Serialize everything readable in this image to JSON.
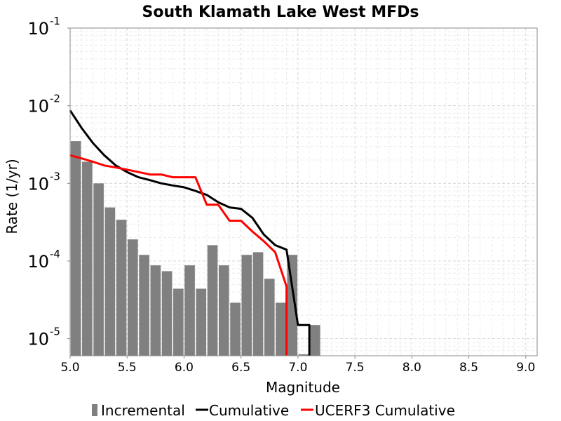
{
  "chart_data": {
    "type": "bar+line",
    "title": "South Klamath Lake West MFDs",
    "xlabel": "Magnitude",
    "ylabel": "Rate (1/yr)",
    "xlim": [
      5.0,
      9.1
    ],
    "ylim_log10": [
      -5.22,
      -1
    ],
    "yscale": "log",
    "grid": true,
    "legend_position": "bottom",
    "x_ticks": [
      "5.0",
      "5.5",
      "6.0",
      "6.5",
      "7.0",
      "7.5",
      "8.0",
      "8.5",
      "9.0"
    ],
    "y_ticks": [
      {
        "base": "10",
        "exp": "-5",
        "value": 1e-05
      },
      {
        "base": "10",
        "exp": "-4",
        "value": 0.0001
      },
      {
        "base": "10",
        "exp": "-3",
        "value": 0.001
      },
      {
        "base": "10",
        "exp": "-2",
        "value": 0.01
      },
      {
        "base": "10",
        "exp": "-1",
        "value": 0.1
      }
    ],
    "incremental": {
      "name": "Incremental",
      "color": "#808080",
      "x": [
        5.05,
        5.15,
        5.25,
        5.35,
        5.45,
        5.55,
        5.65,
        5.75,
        5.85,
        5.95,
        6.05,
        6.15,
        6.25,
        6.35,
        6.45,
        6.55,
        6.65,
        6.75,
        6.85,
        6.95,
        7.05,
        7.15
      ],
      "values": [
        0.0035,
        0.0019,
        0.001,
        0.00049,
        0.00034,
        0.00019,
        0.00012,
        8.8e-05,
        7.4e-05,
        4.4e-05,
        8.8e-05,
        4.4e-05,
        0.00016,
        8.8e-05,
        2.9e-05,
        0.00012,
        0.00013,
        5.9e-05,
        2.9e-05,
        0.00012,
        6.3e-06,
        1.5e-05
      ]
    },
    "cumulative": {
      "name": "Cumulative",
      "color": "#000000",
      "x": [
        5.0,
        5.1,
        5.2,
        5.3,
        5.4,
        5.5,
        5.6,
        5.7,
        5.8,
        5.9,
        6.0,
        6.1,
        6.2,
        6.3,
        6.4,
        6.5,
        6.6,
        6.7,
        6.8,
        6.9,
        7.0,
        7.1,
        7.1
      ],
      "values": [
        0.0087,
        0.0052,
        0.0033,
        0.0023,
        0.0017,
        0.0014,
        0.0012,
        0.0011,
        0.001,
        0.00094,
        0.00089,
        0.0008,
        0.00071,
        0.00057,
        0.00049,
        0.00047,
        0.00036,
        0.00022,
        0.00016,
        0.00014,
        1.5e-05,
        1.5e-05,
        1e-06
      ]
    },
    "ucerf3_cumulative": {
      "name": "UCERF3 Cumulative",
      "color": "#ff0000",
      "x": [
        5.0,
        5.1,
        5.2,
        5.3,
        5.4,
        5.5,
        5.6,
        5.7,
        5.8,
        5.9,
        6.0,
        6.1,
        6.2,
        6.3,
        6.4,
        6.5,
        6.6,
        6.7,
        6.8,
        6.9,
        6.9
      ],
      "values": [
        0.0023,
        0.0021,
        0.0019,
        0.0017,
        0.0016,
        0.0015,
        0.0014,
        0.0013,
        0.0013,
        0.0012,
        0.0012,
        0.0012,
        0.00053,
        0.00053,
        0.00033,
        0.00033,
        0.00024,
        0.00018,
        0.00013,
        4.7e-05,
        1e-06
      ]
    },
    "legend": [
      "Incremental",
      "Cumulative",
      "UCERF3 Cumulative"
    ]
  }
}
